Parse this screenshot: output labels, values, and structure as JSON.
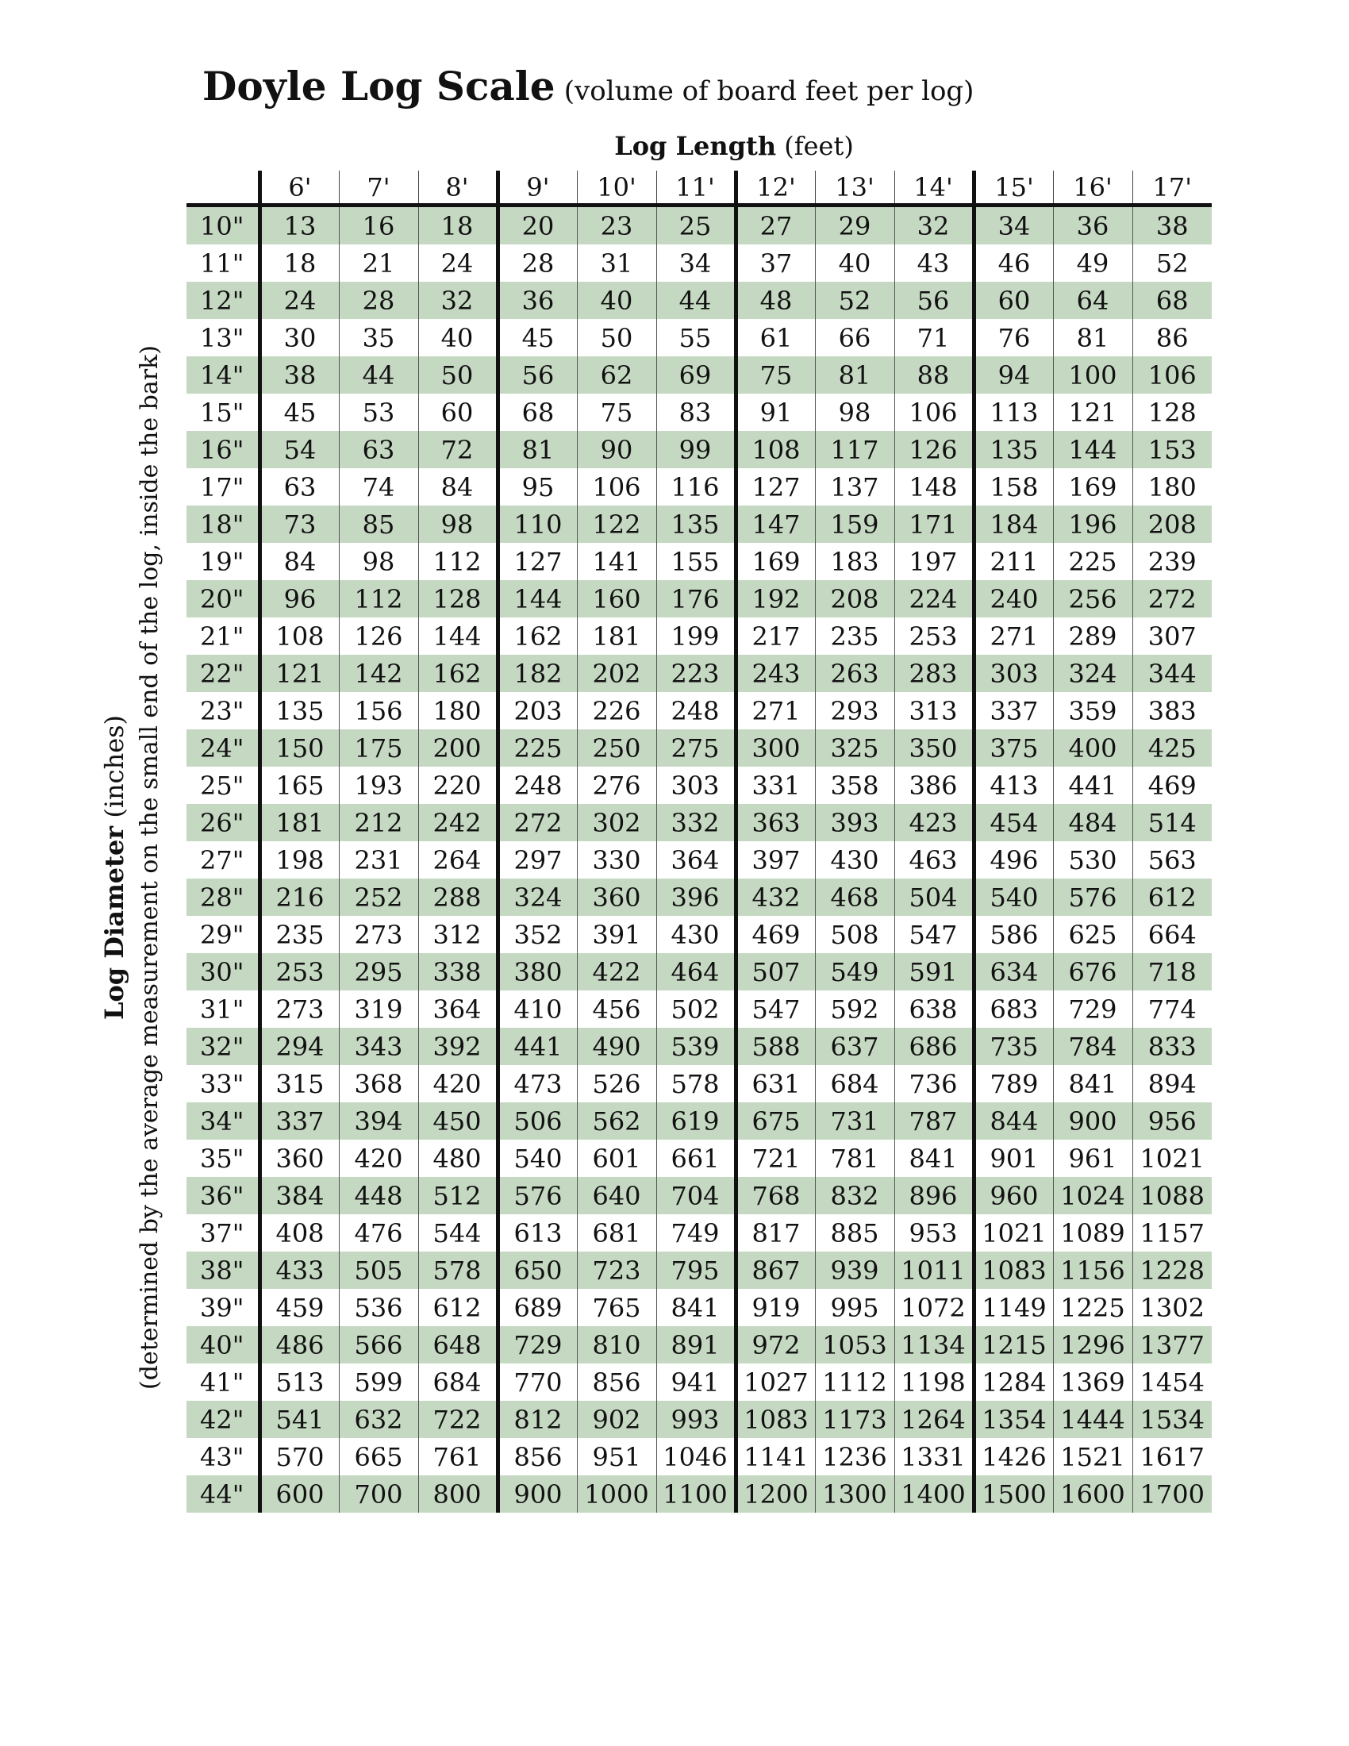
{
  "title": {
    "main": "Doyle Log Scale",
    "subtitle": "(volume of board feet per log)"
  },
  "length_axis": {
    "label": "Log Length",
    "unit": "(feet)"
  },
  "diameter_axis": {
    "label": "Log Diameter",
    "unit": "(inches)",
    "note": "(determined by the average measurement on the small end of the log, inside the bark)"
  },
  "columns": [
    "6'",
    "7'",
    "8'",
    "9'",
    "10'",
    "11'",
    "12'",
    "13'",
    "14'",
    "15'",
    "16'",
    "17'"
  ],
  "rows": [
    {
      "diameter": "10\"",
      "values": [
        "13",
        "16",
        "18",
        "20",
        "23",
        "25",
        "27",
        "29",
        "32",
        "34",
        "36",
        "38"
      ]
    },
    {
      "diameter": "11\"",
      "values": [
        "18",
        "21",
        "24",
        "28",
        "31",
        "34",
        "37",
        "40",
        "43",
        "46",
        "49",
        "52"
      ]
    },
    {
      "diameter": "12\"",
      "values": [
        "24",
        "28",
        "32",
        "36",
        "40",
        "44",
        "48",
        "52",
        "56",
        "60",
        "64",
        "68"
      ]
    },
    {
      "diameter": "13\"",
      "values": [
        "30",
        "35",
        "40",
        "45",
        "50",
        "55",
        "61",
        "66",
        "71",
        "76",
        "81",
        "86"
      ]
    },
    {
      "diameter": "14\"",
      "values": [
        "38",
        "44",
        "50",
        "56",
        "62",
        "69",
        "75",
        "81",
        "88",
        "94",
        "100",
        "106"
      ]
    },
    {
      "diameter": "15\"",
      "values": [
        "45",
        "53",
        "60",
        "68",
        "75",
        "83",
        "91",
        "98",
        "106",
        "113",
        "121",
        "128"
      ]
    },
    {
      "diameter": "16\"",
      "values": [
        "54",
        "63",
        "72",
        "81",
        "90",
        "99",
        "108",
        "117",
        "126",
        "135",
        "144",
        "153"
      ]
    },
    {
      "diameter": "17\"",
      "values": [
        "63",
        "74",
        "84",
        "95",
        "106",
        "116",
        "127",
        "137",
        "148",
        "158",
        "169",
        "180"
      ]
    },
    {
      "diameter": "18\"",
      "values": [
        "73",
        "85",
        "98",
        "110",
        "122",
        "135",
        "147",
        "159",
        "171",
        "184",
        "196",
        "208"
      ]
    },
    {
      "diameter": "19\"",
      "values": [
        "84",
        "98",
        "112",
        "127",
        "141",
        "155",
        "169",
        "183",
        "197",
        "211",
        "225",
        "239"
      ]
    },
    {
      "diameter": "20\"",
      "values": [
        "96",
        "112",
        "128",
        "144",
        "160",
        "176",
        "192",
        "208",
        "224",
        "240",
        "256",
        "272"
      ]
    },
    {
      "diameter": "21\"",
      "values": [
        "108",
        "126",
        "144",
        "162",
        "181",
        "199",
        "217",
        "235",
        "253",
        "271",
        "289",
        "307"
      ]
    },
    {
      "diameter": "22\"",
      "values": [
        "121",
        "142",
        "162",
        "182",
        "202",
        "223",
        "243",
        "263",
        "283",
        "303",
        "324",
        "344"
      ]
    },
    {
      "diameter": "23\"",
      "values": [
        "135",
        "156",
        "180",
        "203",
        "226",
        "248",
        "271",
        "293",
        "313",
        "337",
        "359",
        "383"
      ]
    },
    {
      "diameter": "24\"",
      "values": [
        "150",
        "175",
        "200",
        "225",
        "250",
        "275",
        "300",
        "325",
        "350",
        "375",
        "400",
        "425"
      ]
    },
    {
      "diameter": "25\"",
      "values": [
        "165",
        "193",
        "220",
        "248",
        "276",
        "303",
        "331",
        "358",
        "386",
        "413",
        "441",
        "469"
      ]
    },
    {
      "diameter": "26\"",
      "values": [
        "181",
        "212",
        "242",
        "272",
        "302",
        "332",
        "363",
        "393",
        "423",
        "454",
        "484",
        "514"
      ]
    },
    {
      "diameter": "27\"",
      "values": [
        "198",
        "231",
        "264",
        "297",
        "330",
        "364",
        "397",
        "430",
        "463",
        "496",
        "530",
        "563"
      ]
    },
    {
      "diameter": "28\"",
      "values": [
        "216",
        "252",
        "288",
        "324",
        "360",
        "396",
        "432",
        "468",
        "504",
        "540",
        "576",
        "612"
      ]
    },
    {
      "diameter": "29\"",
      "values": [
        "235",
        "273",
        "312",
        "352",
        "391",
        "430",
        "469",
        "508",
        "547",
        "586",
        "625",
        "664"
      ]
    },
    {
      "diameter": "30\"",
      "values": [
        "253",
        "295",
        "338",
        "380",
        "422",
        "464",
        "507",
        "549",
        "591",
        "634",
        "676",
        "718"
      ]
    },
    {
      "diameter": "31\"",
      "values": [
        "273",
        "319",
        "364",
        "410",
        "456",
        "502",
        "547",
        "592",
        "638",
        "683",
        "729",
        "774"
      ]
    },
    {
      "diameter": "32\"",
      "values": [
        "294",
        "343",
        "392",
        "441",
        "490",
        "539",
        "588",
        "637",
        "686",
        "735",
        "784",
        "833"
      ]
    },
    {
      "diameter": "33\"",
      "values": [
        "315",
        "368",
        "420",
        "473",
        "526",
        "578",
        "631",
        "684",
        "736",
        "789",
        "841",
        "894"
      ]
    },
    {
      "diameter": "34\"",
      "values": [
        "337",
        "394",
        "450",
        "506",
        "562",
        "619",
        "675",
        "731",
        "787",
        "844",
        "900",
        "956"
      ]
    },
    {
      "diameter": "35\"",
      "values": [
        "360",
        "420",
        "480",
        "540",
        "601",
        "661",
        "721",
        "781",
        "841",
        "901",
        "961",
        "1021"
      ]
    },
    {
      "diameter": "36\"",
      "values": [
        "384",
        "448",
        "512",
        "576",
        "640",
        "704",
        "768",
        "832",
        "896",
        "960",
        "1024",
        "1088"
      ]
    },
    {
      "diameter": "37\"",
      "values": [
        "408",
        "476",
        "544",
        "613",
        "681",
        "749",
        "817",
        "885",
        "953",
        "1021",
        "1089",
        "1157"
      ]
    },
    {
      "diameter": "38\"",
      "values": [
        "433",
        "505",
        "578",
        "650",
        "723",
        "795",
        "867",
        "939",
        "1011",
        "1083",
        "1156",
        "1228"
      ]
    },
    {
      "diameter": "39\"",
      "values": [
        "459",
        "536",
        "612",
        "689",
        "765",
        "841",
        "919",
        "995",
        "1072",
        "1149",
        "1225",
        "1302"
      ]
    },
    {
      "diameter": "40\"",
      "values": [
        "486",
        "566",
        "648",
        "729",
        "810",
        "891",
        "972",
        "1053",
        "1134",
        "1215",
        "1296",
        "1377"
      ]
    },
    {
      "diameter": "41\"",
      "values": [
        "513",
        "599",
        "684",
        "770",
        "856",
        "941",
        "1027",
        "1112",
        "1198",
        "1284",
        "1369",
        "1454"
      ]
    },
    {
      "diameter": "42\"",
      "values": [
        "541",
        "632",
        "722",
        "812",
        "902",
        "993",
        "1083",
        "1173",
        "1264",
        "1354",
        "1444",
        "1534"
      ]
    },
    {
      "diameter": "43\"",
      "values": [
        "570",
        "665",
        "761",
        "856",
        "951",
        "1046",
        "1141",
        "1236",
        "1331",
        "1426",
        "1521",
        "1617"
      ]
    },
    {
      "diameter": "44\"",
      "values": [
        "600",
        "700",
        "800",
        "900",
        "1000",
        "1100",
        "1200",
        "1300",
        "1400",
        "1500",
        "1600",
        "1700"
      ]
    }
  ],
  "colors": {
    "band": "#c5d9c2",
    "text": "#111111",
    "rule": "#111111"
  }
}
